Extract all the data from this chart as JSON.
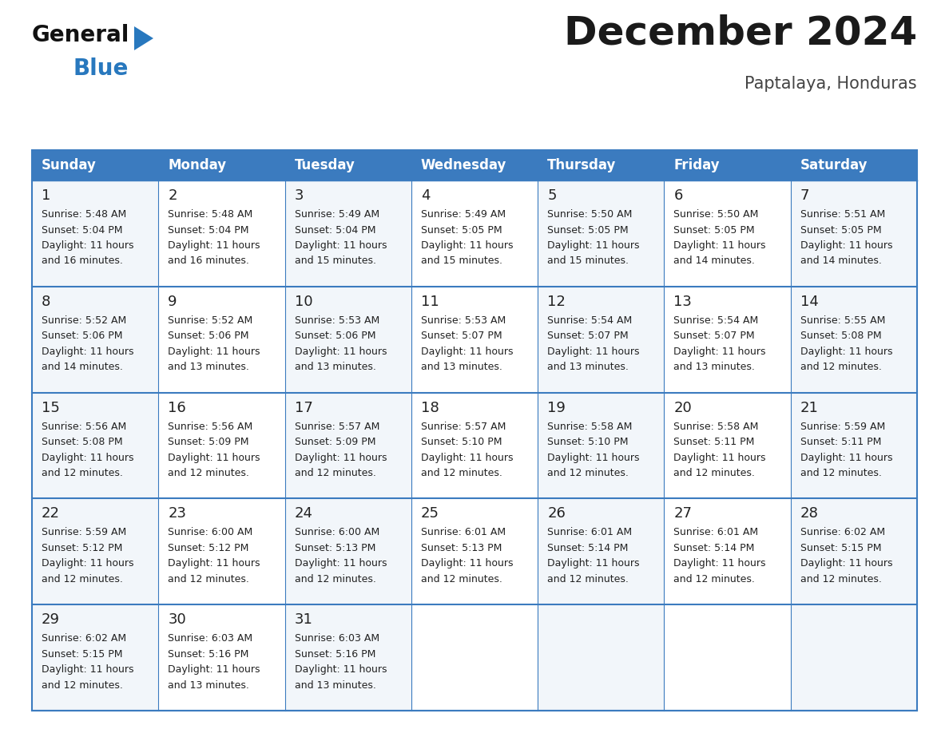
{
  "title": "December 2024",
  "subtitle": "Paptalaya, Honduras",
  "header_bg_color": "#3b7bbf",
  "header_text_color": "#ffffff",
  "cell_bg_even": "#f2f6fa",
  "cell_bg_odd": "#ffffff",
  "border_color": "#3b7bbf",
  "row_border_color": "#3b7bbf",
  "text_color": "#222222",
  "days_of_week": [
    "Sunday",
    "Monday",
    "Tuesday",
    "Wednesday",
    "Thursday",
    "Friday",
    "Saturday"
  ],
  "calendar_data": [
    [
      {
        "day": 1,
        "sunrise": "5:48 AM",
        "sunset": "5:04 PM",
        "daylight": "11 hours and 16 minutes."
      },
      {
        "day": 2,
        "sunrise": "5:48 AM",
        "sunset": "5:04 PM",
        "daylight": "11 hours and 16 minutes."
      },
      {
        "day": 3,
        "sunrise": "5:49 AM",
        "sunset": "5:04 PM",
        "daylight": "11 hours and 15 minutes."
      },
      {
        "day": 4,
        "sunrise": "5:49 AM",
        "sunset": "5:05 PM",
        "daylight": "11 hours and 15 minutes."
      },
      {
        "day": 5,
        "sunrise": "5:50 AM",
        "sunset": "5:05 PM",
        "daylight": "11 hours and 15 minutes."
      },
      {
        "day": 6,
        "sunrise": "5:50 AM",
        "sunset": "5:05 PM",
        "daylight": "11 hours and 14 minutes."
      },
      {
        "day": 7,
        "sunrise": "5:51 AM",
        "sunset": "5:05 PM",
        "daylight": "11 hours and 14 minutes."
      }
    ],
    [
      {
        "day": 8,
        "sunrise": "5:52 AM",
        "sunset": "5:06 PM",
        "daylight": "11 hours and 14 minutes."
      },
      {
        "day": 9,
        "sunrise": "5:52 AM",
        "sunset": "5:06 PM",
        "daylight": "11 hours and 13 minutes."
      },
      {
        "day": 10,
        "sunrise": "5:53 AM",
        "sunset": "5:06 PM",
        "daylight": "11 hours and 13 minutes."
      },
      {
        "day": 11,
        "sunrise": "5:53 AM",
        "sunset": "5:07 PM",
        "daylight": "11 hours and 13 minutes."
      },
      {
        "day": 12,
        "sunrise": "5:54 AM",
        "sunset": "5:07 PM",
        "daylight": "11 hours and 13 minutes."
      },
      {
        "day": 13,
        "sunrise": "5:54 AM",
        "sunset": "5:07 PM",
        "daylight": "11 hours and 13 minutes."
      },
      {
        "day": 14,
        "sunrise": "5:55 AM",
        "sunset": "5:08 PM",
        "daylight": "11 hours and 12 minutes."
      }
    ],
    [
      {
        "day": 15,
        "sunrise": "5:56 AM",
        "sunset": "5:08 PM",
        "daylight": "11 hours and 12 minutes."
      },
      {
        "day": 16,
        "sunrise": "5:56 AM",
        "sunset": "5:09 PM",
        "daylight": "11 hours and 12 minutes."
      },
      {
        "day": 17,
        "sunrise": "5:57 AM",
        "sunset": "5:09 PM",
        "daylight": "11 hours and 12 minutes."
      },
      {
        "day": 18,
        "sunrise": "5:57 AM",
        "sunset": "5:10 PM",
        "daylight": "11 hours and 12 minutes."
      },
      {
        "day": 19,
        "sunrise": "5:58 AM",
        "sunset": "5:10 PM",
        "daylight": "11 hours and 12 minutes."
      },
      {
        "day": 20,
        "sunrise": "5:58 AM",
        "sunset": "5:11 PM",
        "daylight": "11 hours and 12 minutes."
      },
      {
        "day": 21,
        "sunrise": "5:59 AM",
        "sunset": "5:11 PM",
        "daylight": "11 hours and 12 minutes."
      }
    ],
    [
      {
        "day": 22,
        "sunrise": "5:59 AM",
        "sunset": "5:12 PM",
        "daylight": "11 hours and 12 minutes."
      },
      {
        "day": 23,
        "sunrise": "6:00 AM",
        "sunset": "5:12 PM",
        "daylight": "11 hours and 12 minutes."
      },
      {
        "day": 24,
        "sunrise": "6:00 AM",
        "sunset": "5:13 PM",
        "daylight": "11 hours and 12 minutes."
      },
      {
        "day": 25,
        "sunrise": "6:01 AM",
        "sunset": "5:13 PM",
        "daylight": "11 hours and 12 minutes."
      },
      {
        "day": 26,
        "sunrise": "6:01 AM",
        "sunset": "5:14 PM",
        "daylight": "11 hours and 12 minutes."
      },
      {
        "day": 27,
        "sunrise": "6:01 AM",
        "sunset": "5:14 PM",
        "daylight": "11 hours and 12 minutes."
      },
      {
        "day": 28,
        "sunrise": "6:02 AM",
        "sunset": "5:15 PM",
        "daylight": "11 hours and 12 minutes."
      }
    ],
    [
      {
        "day": 29,
        "sunrise": "6:02 AM",
        "sunset": "5:15 PM",
        "daylight": "11 hours and 12 minutes."
      },
      {
        "day": 30,
        "sunrise": "6:03 AM",
        "sunset": "5:16 PM",
        "daylight": "11 hours and 13 minutes."
      },
      {
        "day": 31,
        "sunrise": "6:03 AM",
        "sunset": "5:16 PM",
        "daylight": "11 hours and 13 minutes."
      },
      null,
      null,
      null,
      null
    ]
  ],
  "logo_general_color": "#111111",
  "logo_blue_color": "#2878be",
  "logo_triangle_color": "#2878be",
  "title_fontsize": 36,
  "subtitle_fontsize": 15,
  "header_fontsize": 12,
  "day_num_fontsize": 13,
  "cell_text_fontsize": 9
}
